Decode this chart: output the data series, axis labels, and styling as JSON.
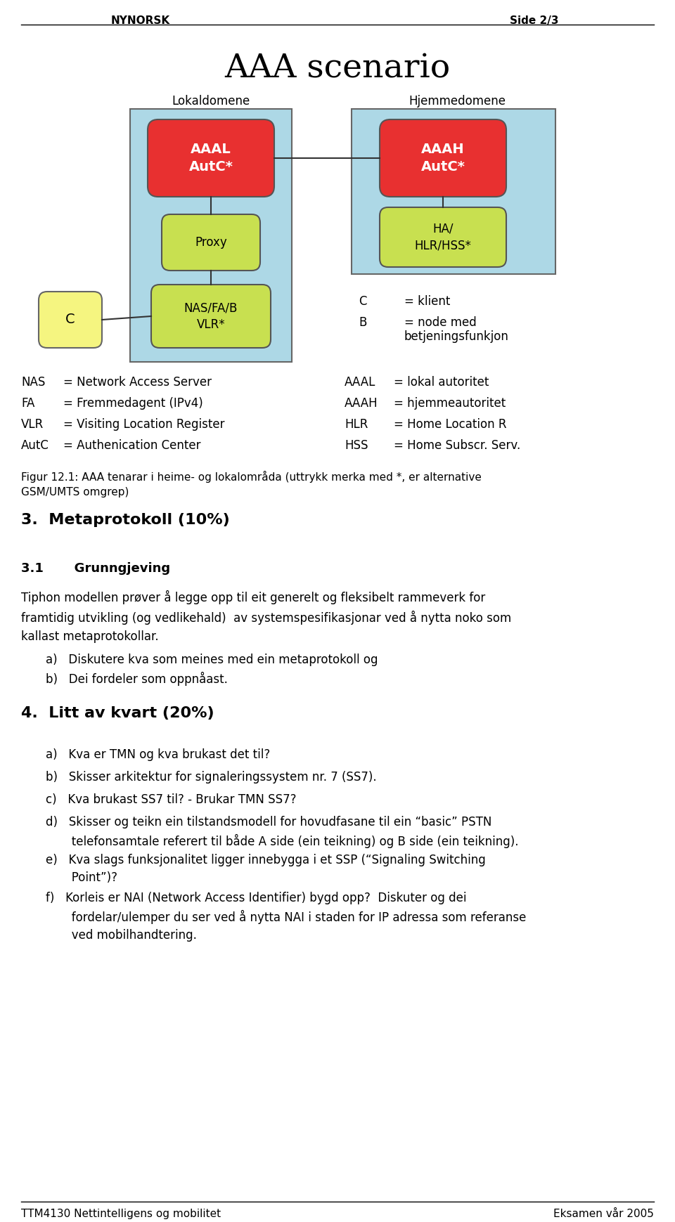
{
  "page_header_left": "NYNORSK",
  "page_header_right": "Side 2/3",
  "main_title": "AAA scenario",
  "lokaldomene_label": "Lokaldomene",
  "hjemmedomene_label": "Hjemmedomene",
  "aaal_text": "AAAL\nAutC*",
  "aaah_text": "AAAH\nAutC*",
  "proxy_text": "Proxy",
  "ha_text": "HA/\nHLR/HSS*",
  "nasfab_text": "NAS/FA/B\nVLR*",
  "c_text": "C",
  "figure_caption": "Figur 12.1: AAA tenarar i heime- og lokalområda (uttrykk merka med *, er alternative\nGSM/UMTS omgrep)",
  "section3_title": "3.  Metaprotokoll (10%)",
  "section31_title": "3.1       Grunngjeving",
  "section31_body": "Tiphon modellen prøver å legge opp til eit generelt og fleksibelt rammeverk for\nframtidig utvikling (og vedlikehald)  av systemspesifikasjonar ved å nytta noko som\nkallast metaprotokollar.",
  "section31_items": [
    "a)   Diskutere kva som meines med ein metaprotokoll og",
    "b)   Dei fordeler som oppnåast."
  ],
  "section4_title": "4.  Litt av kvart (20%)",
  "section4_items": [
    "a)   Kva er TMN og kva brukast det til?",
    "b)   Skisser arkitektur for signaleringssystem nr. 7 (SS7).",
    "c)   Kva brukast SS7 til? - Brukar TMN SS7?",
    "d)   Skisser og teikn ein tilstandsmodell for hovudfasane til ein “basic” PSTN\n       telefonsamtale referert til både A side (ein teikning) og B side (ein teikning).",
    "e)   Kva slags funksjonalitet ligger innebygga i et SSP (“Signaling Switching\n       Point”)?",
    "f)   Korleis er NAI (Network Access Identifier) bygd opp?  Diskuter og dei\n       fordelar/ulemper du ser ved å nytta NAI i staden for IP adressa som referanse\n       ved mobilhandtering."
  ],
  "page_footer_left": "TTM4130 Nettintelligens og mobilitet",
  "page_footer_right": "Eksamen vår 2005",
  "bg_color": "#ffffff",
  "box_lokale_color": "#add8e6",
  "box_hjemme_color": "#add8e6",
  "red_box_color": "#e83030",
  "green_box_color": "#c8e050",
  "yellow_box_color": "#f5f580"
}
